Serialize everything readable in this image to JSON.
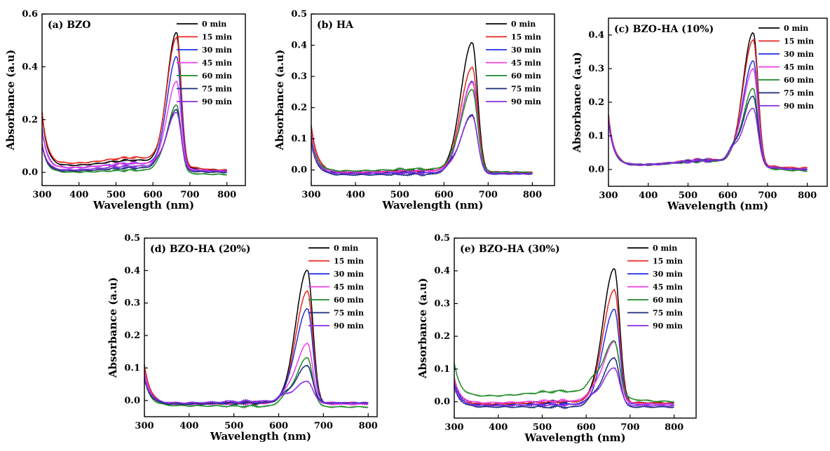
{
  "chart_data": [
    {
      "type": "line",
      "title": "(a) BZO",
      "xlabel": "Wavelength (nm)",
      "ylabel": "Absorbance (a.u)",
      "xlim": [
        300,
        850
      ],
      "ylim": [
        -0.05,
        0.6
      ],
      "xticks": [
        "300",
        "400",
        "500",
        "600",
        "700",
        "800"
      ],
      "yticks": [
        "0.0",
        "0.2",
        "0.4",
        "0.6"
      ],
      "ytick_values": [
        0.0,
        0.2,
        0.4,
        0.6
      ],
      "legend_position": "top-right",
      "series": [
        {
          "name": "0 min",
          "color": "#000000",
          "peak": 0.505,
          "shoulder": 0.26,
          "uv": 0.2,
          "base": 0.03,
          "end": 0.01
        },
        {
          "name": "15 min",
          "color": "#e8251f",
          "peak": 0.48,
          "shoulder": 0.26,
          "uv": 0.2,
          "base": 0.04,
          "end": 0.01
        },
        {
          "name": "30 min",
          "color": "#1f2fe8",
          "peak": 0.42,
          "shoulder": 0.22,
          "uv": 0.15,
          "base": 0.02,
          "end": 0.005
        },
        {
          "name": "45 min",
          "color": "#ee3ee8",
          "peak": 0.325,
          "shoulder": 0.18,
          "uv": 0.14,
          "base": 0.02,
          "end": 0.005
        },
        {
          "name": "60 min",
          "color": "#1d8a24",
          "peak": 0.255,
          "shoulder": 0.15,
          "uv": 0.1,
          "base": 0.0,
          "end": -0.01
        },
        {
          "name": "75 min",
          "color": "#1a2a7a",
          "peak": 0.23,
          "shoulder": 0.14,
          "uv": 0.1,
          "base": 0.005,
          "end": 0.0
        },
        {
          "name": "90 min",
          "color": "#8a2be2",
          "peak": 0.215,
          "shoulder": 0.13,
          "uv": 0.1,
          "base": 0.01,
          "end": 0.005
        }
      ]
    },
    {
      "type": "line",
      "title": "(b) HA",
      "xlabel": "Wavelength (nm)",
      "ylabel": "Absorbance (a.u)",
      "xlim": [
        300,
        850
      ],
      "ylim": [
        -0.05,
        0.5
      ],
      "xticks": [
        "300",
        "400",
        "500",
        "600",
        "700",
        "800"
      ],
      "yticks": [
        "0.0",
        "0.1",
        "0.2",
        "0.3",
        "0.4",
        "0.5"
      ],
      "ytick_values": [
        0.0,
        0.1,
        0.2,
        0.3,
        0.4,
        0.5
      ],
      "legend_position": "top-right",
      "series": [
        {
          "name": "0 min",
          "color": "#000000",
          "peak": 0.415,
          "shoulder": 0.21,
          "uv": 0.15,
          "base": -0.01,
          "end": -0.01
        },
        {
          "name": "15 min",
          "color": "#e8251f",
          "peak": 0.335,
          "shoulder": 0.18,
          "uv": 0.15,
          "base": -0.01,
          "end": -0.01
        },
        {
          "name": "30 min",
          "color": "#1f2fe8",
          "peak": 0.295,
          "shoulder": 0.16,
          "uv": 0.12,
          "base": -0.015,
          "end": -0.015
        },
        {
          "name": "45 min",
          "color": "#ee3ee8",
          "peak": 0.285,
          "shoulder": 0.15,
          "uv": 0.12,
          "base": -0.01,
          "end": -0.01
        },
        {
          "name": "60 min",
          "color": "#1d8a24",
          "peak": 0.26,
          "shoulder": 0.15,
          "uv": 0.1,
          "base": -0.005,
          "end": -0.01
        },
        {
          "name": "75 min",
          "color": "#1a2a7a",
          "peak": 0.19,
          "shoulder": 0.12,
          "uv": 0.1,
          "base": -0.02,
          "end": -0.015
        },
        {
          "name": "90 min",
          "color": "#8a2be2",
          "peak": 0.185,
          "shoulder": 0.11,
          "uv": 0.1,
          "base": -0.015,
          "end": -0.015
        }
      ]
    },
    {
      "type": "line",
      "title": "(c) BZO-HA (10%)",
      "xlabel": "Wavelength (nm)",
      "ylabel": "Absorbance (a.u)",
      "xlim": [
        300,
        850
      ],
      "ylim": [
        -0.05,
        0.45
      ],
      "xticks": [
        "300",
        "400",
        "500",
        "600",
        "700",
        "800"
      ],
      "yticks": [
        "0.0",
        "0.1",
        "0.2",
        "0.3",
        "0.4"
      ],
      "ytick_values": [
        0.0,
        0.1,
        0.2,
        0.3,
        0.4
      ],
      "legend_position": "top-right",
      "series": [
        {
          "name": "0 min",
          "color": "#000000",
          "peak": 0.395,
          "shoulder": 0.2,
          "uv": 0.15,
          "base": 0.015,
          "end": 0.0
        },
        {
          "name": "15 min",
          "color": "#e8251f",
          "peak": 0.37,
          "shoulder": 0.2,
          "uv": 0.15,
          "base": 0.015,
          "end": 0.005
        },
        {
          "name": "30 min",
          "color": "#1f2fe8",
          "peak": 0.31,
          "shoulder": 0.18,
          "uv": 0.14,
          "base": 0.015,
          "end": 0.0
        },
        {
          "name": "45 min",
          "color": "#ee3ee8",
          "peak": 0.285,
          "shoulder": 0.17,
          "uv": 0.14,
          "base": 0.015,
          "end": 0.0
        },
        {
          "name": "60 min",
          "color": "#1d8a24",
          "peak": 0.23,
          "shoulder": 0.15,
          "uv": 0.13,
          "base": 0.015,
          "end": -0.005
        },
        {
          "name": "75 min",
          "color": "#1a2a7a",
          "peak": 0.205,
          "shoulder": 0.14,
          "uv": 0.13,
          "base": 0.015,
          "end": 0.0
        },
        {
          "name": "90 min",
          "color": "#8a2be2",
          "peak": 0.17,
          "shoulder": 0.12,
          "uv": 0.13,
          "base": 0.015,
          "end": 0.0
        }
      ]
    },
    {
      "type": "line",
      "title": "(d) BZO-HA (20%)",
      "xlabel": "Wavelength (nm)",
      "ylabel": "Absorbance (a.u)",
      "xlim": [
        300,
        820
      ],
      "ylim": [
        -0.05,
        0.5
      ],
      "xticks": [
        "300",
        "400",
        "500",
        "600",
        "700",
        "800"
      ],
      "yticks": [
        "0.0",
        "0.1",
        "0.2",
        "0.3",
        "0.4",
        "0.5"
      ],
      "ytick_values": [
        0.0,
        0.1,
        0.2,
        0.3,
        0.4,
        0.5
      ],
      "legend_position": "top-right",
      "series": [
        {
          "name": "0 min",
          "color": "#000000",
          "peak": 0.41,
          "shoulder": 0.2,
          "uv": 0.12,
          "base": -0.015,
          "end": -0.01
        },
        {
          "name": "15 min",
          "color": "#e8251f",
          "peak": 0.345,
          "shoulder": 0.19,
          "uv": 0.12,
          "base": -0.015,
          "end": -0.01
        },
        {
          "name": "30 min",
          "color": "#1f2fe8",
          "peak": 0.29,
          "shoulder": 0.17,
          "uv": 0.1,
          "base": -0.015,
          "end": -0.01
        },
        {
          "name": "45 min",
          "color": "#ee3ee8",
          "peak": 0.185,
          "shoulder": 0.12,
          "uv": 0.1,
          "base": -0.015,
          "end": -0.015
        },
        {
          "name": "60 min",
          "color": "#1d8a24",
          "peak": 0.15,
          "shoulder": 0.1,
          "uv": 0.08,
          "base": -0.02,
          "end": -0.025
        },
        {
          "name": "75 min",
          "color": "#1a2a7a",
          "peak": 0.115,
          "shoulder": 0.08,
          "uv": 0.08,
          "base": -0.015,
          "end": -0.01
        },
        {
          "name": "90 min",
          "color": "#8a2be2",
          "peak": 0.065,
          "shoulder": 0.05,
          "uv": 0.08,
          "base": -0.01,
          "end": -0.01
        }
      ]
    },
    {
      "type": "line",
      "title": "(e) BZO-HA (30%)",
      "xlabel": "Wavelength (nm)",
      "ylabel": "Absorbance (a.u)",
      "xlim": [
        300,
        850
      ],
      "ylim": [
        -0.05,
        0.5
      ],
      "xticks": [
        "300",
        "400",
        "500",
        "600",
        "700",
        "800"
      ],
      "yticks": [
        "0.0",
        "0.1",
        "0.2",
        "0.3",
        "0.4",
        "0.5"
      ],
      "ytick_values": [
        0.0,
        0.1,
        0.2,
        0.3,
        0.4,
        0.5
      ],
      "legend_position": "top-right",
      "series": [
        {
          "name": "0 min",
          "color": "#000000",
          "peak": 0.41,
          "shoulder": 0.2,
          "uv": 0.08,
          "base": -0.01,
          "end": -0.005
        },
        {
          "name": "15 min",
          "color": "#e8251f",
          "peak": 0.345,
          "shoulder": 0.18,
          "uv": 0.08,
          "base": -0.01,
          "end": -0.005
        },
        {
          "name": "30 min",
          "color": "#1f2fe8",
          "peak": 0.29,
          "shoulder": 0.16,
          "uv": 0.07,
          "base": -0.015,
          "end": -0.01
        },
        {
          "name": "45 min",
          "color": "#ee3ee8",
          "peak": 0.185,
          "shoulder": 0.12,
          "uv": 0.07,
          "base": -0.005,
          "end": -0.01
        },
        {
          "name": "60 min",
          "color": "#1d8a24",
          "peak": 0.17,
          "shoulder": 0.12,
          "uv": 0.1,
          "base": 0.02,
          "end": 0.0
        },
        {
          "name": "75 min",
          "color": "#1a2a7a",
          "peak": 0.15,
          "shoulder": 0.1,
          "uv": 0.06,
          "base": -0.02,
          "end": -0.02
        },
        {
          "name": "90 min",
          "color": "#8a2be2",
          "peak": 0.115,
          "shoulder": 0.08,
          "uv": 0.06,
          "base": -0.015,
          "end": -0.015
        }
      ]
    }
  ]
}
